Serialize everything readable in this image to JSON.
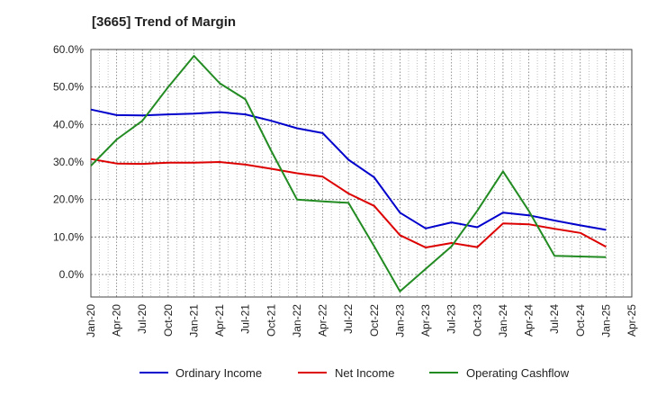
{
  "chart_data": {
    "type": "line",
    "title": "[3665]  Trend of Margin",
    "xlabel": "",
    "ylabel": "",
    "x": [
      "Jan-20",
      "Apr-20",
      "Jul-20",
      "Oct-20",
      "Jan-21",
      "Apr-21",
      "Jul-21",
      "Oct-21",
      "Jan-22",
      "Apr-22",
      "Jul-22",
      "Oct-22",
      "Jan-23",
      "Apr-23",
      "Jul-23",
      "Oct-23",
      "Jan-24",
      "Apr-24",
      "Jul-24",
      "Oct-24",
      "Jan-25"
    ],
    "x_ticks": [
      "Jan-20",
      "Apr-20",
      "Jul-20",
      "Oct-20",
      "Jan-21",
      "Apr-21",
      "Jul-21",
      "Oct-21",
      "Jan-22",
      "Apr-22",
      "Jul-22",
      "Oct-22",
      "Jan-23",
      "Apr-23",
      "Jul-23",
      "Oct-23",
      "Jan-24",
      "Apr-24",
      "Jul-24",
      "Oct-24",
      "Jan-25",
      "Apr-25"
    ],
    "ylim": [
      -6,
      60
    ],
    "y_ticks": [
      "60.0%",
      "50.0%",
      "40.0%",
      "30.0%",
      "20.0%",
      "10.0%",
      "0.0%"
    ],
    "y_tick_values": [
      60,
      50,
      40,
      30,
      20,
      10,
      0
    ],
    "grid": true,
    "legend_position": "bottom",
    "series": [
      {
        "name": "Ordinary Income",
        "color": "#0000cc",
        "values": [
          44.0,
          42.5,
          42.4,
          42.7,
          42.9,
          43.3,
          42.7,
          41.0,
          39.0,
          37.7,
          30.6,
          25.9,
          16.5,
          12.3,
          13.9,
          12.6,
          16.5,
          15.8,
          14.4,
          13.1,
          11.9
        ]
      },
      {
        "name": "Net Income",
        "color": "#dd0000",
        "values": [
          30.8,
          29.6,
          29.5,
          29.8,
          29.8,
          30.0,
          29.3,
          28.2,
          27.0,
          26.1,
          21.6,
          18.3,
          10.5,
          7.2,
          8.4,
          7.3,
          13.6,
          13.4,
          12.2,
          11.1,
          7.4
        ]
      },
      {
        "name": "Operating Cashflow",
        "color": "#228b22",
        "values": [
          29.0,
          36.0,
          41.0,
          50.0,
          58.3,
          51.0,
          46.7,
          33.0,
          20.0,
          19.5,
          19.1,
          7.5,
          -4.5,
          1.5,
          7.5,
          17.0,
          27.5,
          17.0,
          5.0,
          4.8,
          4.6
        ]
      }
    ]
  }
}
